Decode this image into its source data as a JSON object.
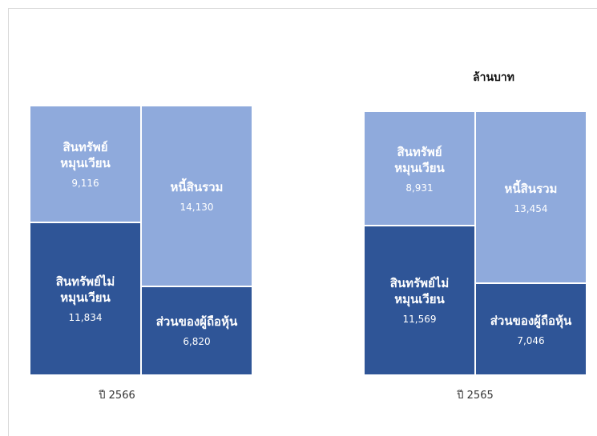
{
  "unit_label": "ล้านบาท",
  "chart_data": [
    {
      "type": "bar",
      "x_label": "ปี 2566",
      "series": [
        {
          "name": "สินทรัพย์ไม่\nหมุนเวียน",
          "color": "#2f5597",
          "values": [
            11834,
            null
          ],
          "value_labels": [
            "11,834",
            null
          ]
        },
        {
          "name": "สินทรัพย์\nหมุนเวียน",
          "color": "#8faadc",
          "values": [
            9116,
            null
          ],
          "value_labels": [
            "9,116",
            null
          ]
        },
        {
          "name": "ส่วนของผู้ถือหุ้น",
          "color": "#2f5597",
          "values": [
            null,
            6820
          ],
          "value_labels": [
            null,
            "6,820"
          ]
        },
        {
          "name": "หนี้สินรวม",
          "color": "#8faadc",
          "values": [
            null,
            14130
          ],
          "value_labels": [
            null,
            "14,130"
          ]
        }
      ]
    },
    {
      "type": "bar",
      "x_label": "ปี 2565",
      "series": [
        {
          "name": "สินทรัพย์ไม่\nหมุนเวียน",
          "color": "#2f5597",
          "values": [
            11569,
            null
          ],
          "value_labels": [
            "11,569",
            null
          ]
        },
        {
          "name": "สินทรัพย์\nหมุนเวียน",
          "color": "#8faadc",
          "values": [
            8931,
            null
          ],
          "value_labels": [
            "8,931",
            null
          ]
        },
        {
          "name": "ส่วนของผู้ถือหุ้น",
          "color": "#2f5597",
          "values": [
            null,
            7046
          ],
          "value_labels": [
            null,
            "7,046"
          ]
        },
        {
          "name": "หนี้สินรวม",
          "color": "#8faadc",
          "values": [
            null,
            13454
          ],
          "value_labels": [
            null,
            "13,454"
          ]
        }
      ]
    }
  ]
}
